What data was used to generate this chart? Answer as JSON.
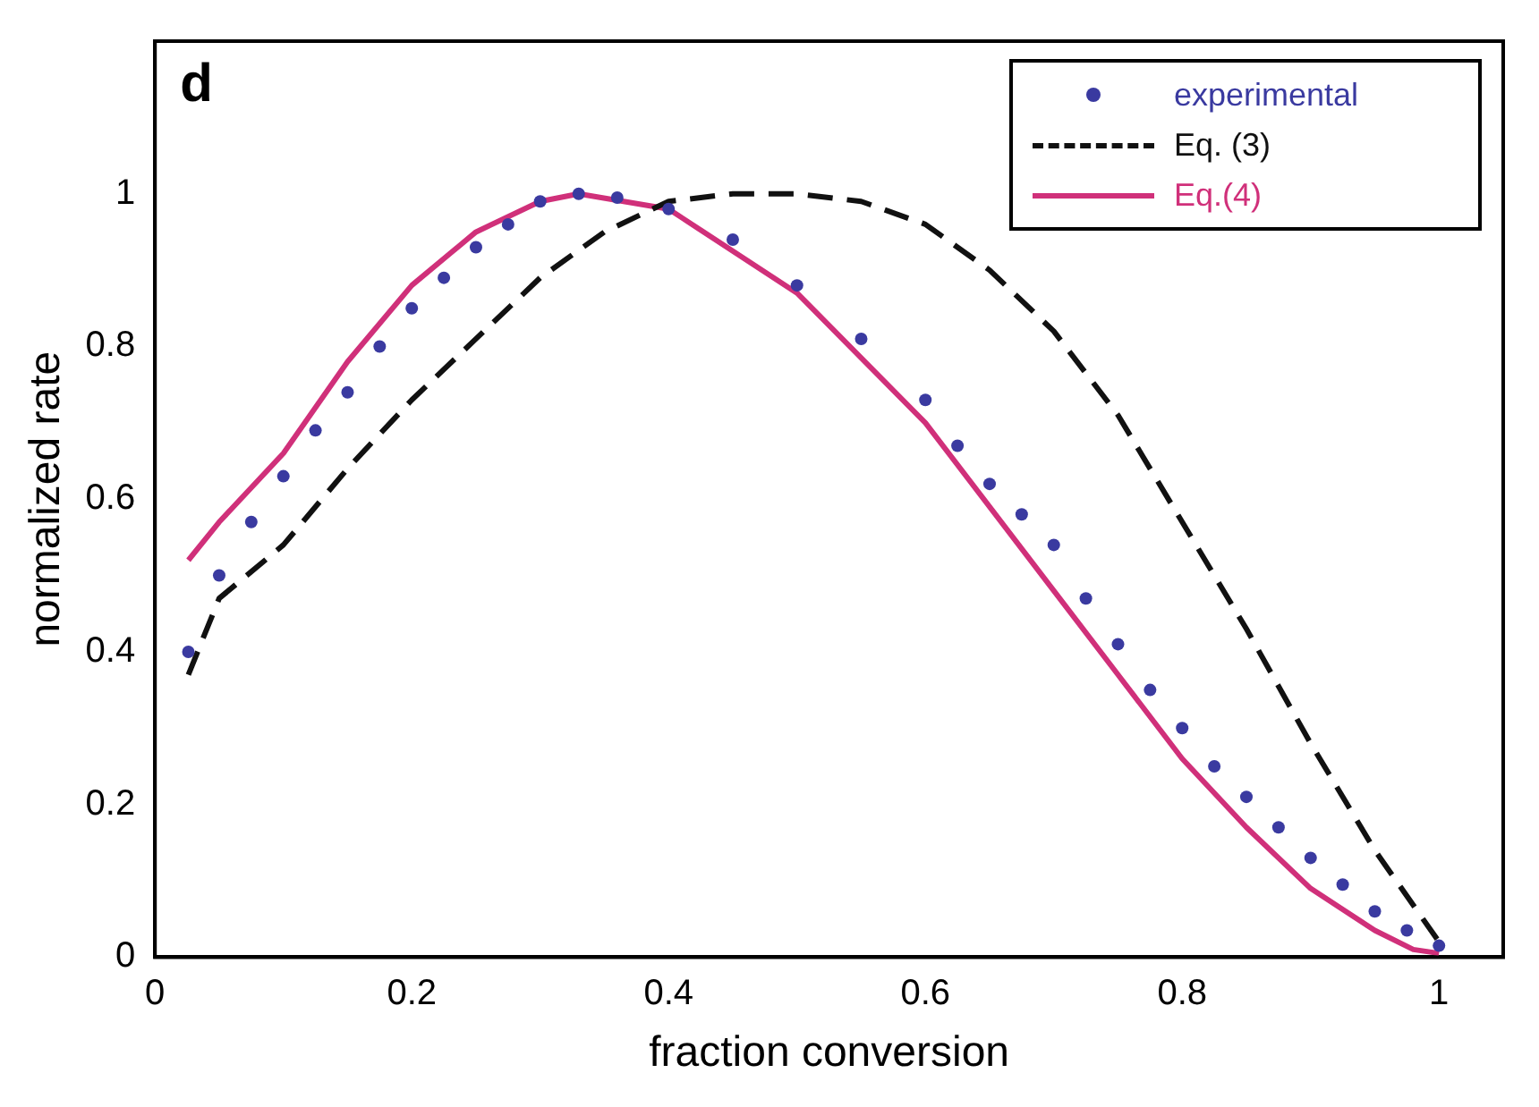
{
  "chart_data": {
    "type": "line",
    "xlabel": "fraction conversion",
    "ylabel": "normalized rate",
    "annotations": [
      "d"
    ],
    "xlim": [
      0,
      1.05
    ],
    "xticks": [
      0,
      0.2,
      0.4,
      0.6,
      0.8,
      1
    ],
    "ylim": [
      0,
      1.2
    ],
    "yticks": [
      0,
      0.2,
      0.4,
      0.6,
      0.8,
      1
    ],
    "grid": false,
    "legend": "top right",
    "series": [
      {
        "name": "experimental",
        "type": "scatter",
        "marker": "circle",
        "color": "#3a3aa0",
        "x": [
          0.026,
          0.05,
          0.075,
          0.1,
          0.125,
          0.15,
          0.175,
          0.2,
          0.225,
          0.25,
          0.275,
          0.3,
          0.33,
          0.36,
          0.4,
          0.45,
          0.5,
          0.55,
          0.6,
          0.625,
          0.65,
          0.675,
          0.7,
          0.725,
          0.75,
          0.775,
          0.8,
          0.825,
          0.85,
          0.875,
          0.9,
          0.925,
          0.95,
          0.975,
          1.0
        ],
        "values": [
          0.4,
          0.5,
          0.57,
          0.63,
          0.69,
          0.74,
          0.8,
          0.85,
          0.89,
          0.93,
          0.96,
          0.99,
          1.0,
          0.995,
          0.98,
          0.94,
          0.88,
          0.81,
          0.73,
          0.67,
          0.62,
          0.58,
          0.54,
          0.47,
          0.41,
          0.35,
          0.3,
          0.25,
          0.21,
          0.17,
          0.13,
          0.095,
          0.06,
          0.035,
          0.015
        ]
      },
      {
        "name": "Eq. (3)",
        "marker": "none",
        "line_style": "dashed",
        "color": "#111111",
        "x": [
          0.026,
          0.05,
          0.1,
          0.15,
          0.2,
          0.25,
          0.3,
          0.35,
          0.4,
          0.45,
          0.5,
          0.55,
          0.6,
          0.65,
          0.7,
          0.75,
          0.8,
          0.85,
          0.9,
          0.95,
          1.0
        ],
        "values": [
          0.37,
          0.47,
          0.54,
          0.64,
          0.73,
          0.81,
          0.89,
          0.95,
          0.99,
          1.0,
          1.0,
          0.99,
          0.96,
          0.9,
          0.82,
          0.71,
          0.57,
          0.43,
          0.28,
          0.14,
          0.02
        ]
      },
      {
        "name": "Eq.(4)",
        "marker": "none",
        "line_style": "solid",
        "color": "#d0307a",
        "x": [
          0.026,
          0.05,
          0.1,
          0.15,
          0.2,
          0.25,
          0.3,
          0.33,
          0.4,
          0.5,
          0.6,
          0.7,
          0.75,
          0.8,
          0.85,
          0.9,
          0.95,
          0.98,
          1.0
        ],
        "values": [
          0.52,
          0.57,
          0.66,
          0.78,
          0.88,
          0.95,
          0.99,
          1.0,
          0.98,
          0.87,
          0.7,
          0.48,
          0.37,
          0.26,
          0.17,
          0.09,
          0.035,
          0.01,
          0.005
        ]
      }
    ]
  }
}
